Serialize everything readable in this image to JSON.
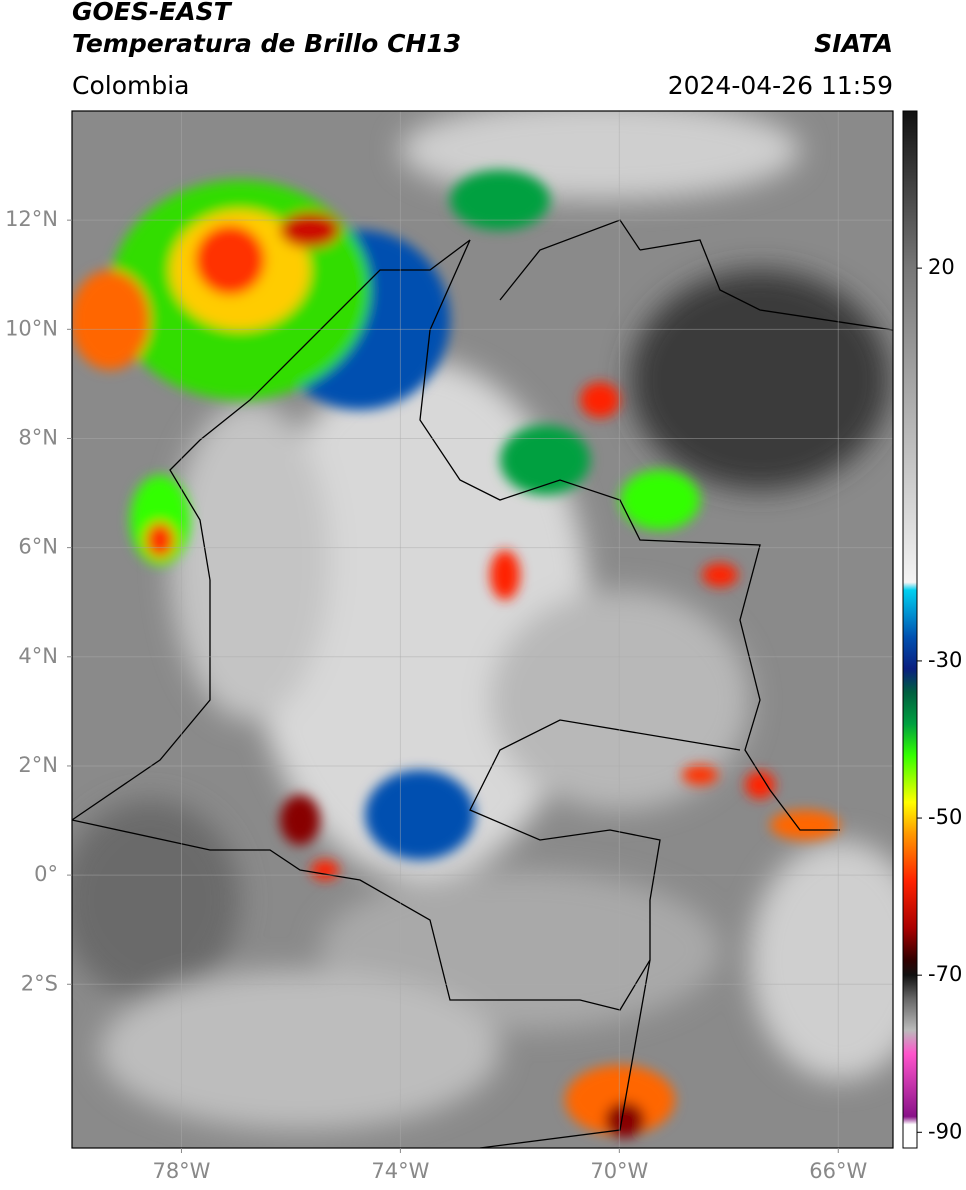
{
  "header": {
    "satellite": "GOES-EAST",
    "product": "Temperatura de Brillo CH13",
    "source": "SIATA",
    "region": "Colombia",
    "timestamp": "2024-04-26 11:59"
  },
  "map": {
    "xlim": [
      -80,
      -65
    ],
    "ylim": [
      -5,
      14
    ],
    "grid": true,
    "xticks": [
      {
        "value": -78,
        "label": "78°W"
      },
      {
        "value": -74,
        "label": "74°W"
      },
      {
        "value": -70,
        "label": "70°W"
      },
      {
        "value": -66,
        "label": "66°W"
      }
    ],
    "yticks": [
      {
        "value": 12,
        "label": "12°N"
      },
      {
        "value": 10,
        "label": "10°N"
      },
      {
        "value": 8,
        "label": "8°N"
      },
      {
        "value": 6,
        "label": "6°N"
      },
      {
        "value": 4,
        "label": "4°N"
      },
      {
        "value": 2,
        "label": "2°N"
      },
      {
        "value": 0,
        "label": "0°"
      },
      {
        "value": -2,
        "label": "2°S"
      }
    ]
  },
  "colorbar": {
    "lim": [
      -92,
      40
    ],
    "ticks": [
      20,
      -30,
      -50,
      -70,
      -90
    ],
    "colormap": [
      {
        "value": 40,
        "color": "#111111"
      },
      {
        "value": 20,
        "color": "#777777"
      },
      {
        "value": -20,
        "color": "#f4f4f4"
      },
      {
        "value": -21,
        "color": "#00d0f0"
      },
      {
        "value": -27,
        "color": "#0050b0"
      },
      {
        "value": -31,
        "color": "#0a1f80"
      },
      {
        "value": -34,
        "color": "#006040"
      },
      {
        "value": -38,
        "color": "#00a040"
      },
      {
        "value": -42,
        "color": "#33ff00"
      },
      {
        "value": -48,
        "color": "#ffff00"
      },
      {
        "value": -52,
        "color": "#ff9900"
      },
      {
        "value": -58,
        "color": "#ff2200"
      },
      {
        "value": -64,
        "color": "#aa0000"
      },
      {
        "value": -68,
        "color": "#330000"
      },
      {
        "value": -70,
        "color": "#111111"
      },
      {
        "value": -73,
        "color": "#666666"
      },
      {
        "value": -77,
        "color": "#bbbbbb"
      },
      {
        "value": -80,
        "color": "#ff55cc"
      },
      {
        "value": -88,
        "color": "#881188"
      },
      {
        "value": -89,
        "color": "#ffffff"
      },
      {
        "value": -92,
        "color": "#ffffff"
      }
    ]
  }
}
